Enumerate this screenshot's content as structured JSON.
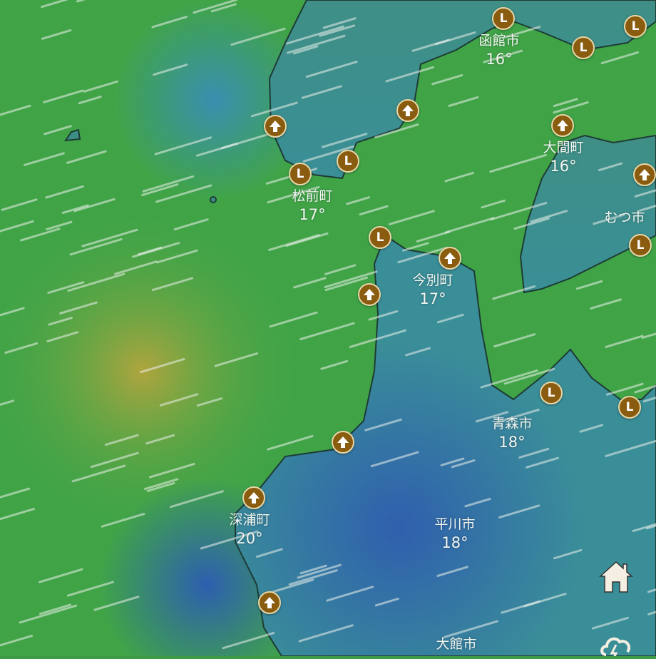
{
  "map": {
    "layer": "wind",
    "colors": {
      "sea_green": "#3fa648",
      "sea_yellow": "#a8a540",
      "land_teal": "#3b8f8c",
      "land_blue": "#2f63a8",
      "marker": "#8a5c10"
    }
  },
  "cities": [
    {
      "name": "函館市",
      "temp": "16°"
    },
    {
      "name": "大間町",
      "temp": "16°"
    },
    {
      "name": "むつ市",
      "temp": ""
    },
    {
      "name": "松前町",
      "temp": "17°"
    },
    {
      "name": "今別町",
      "temp": "17°"
    },
    {
      "name": "青森市",
      "temp": "18°"
    },
    {
      "name": "深浦町",
      "temp": "20°"
    },
    {
      "name": "平川市",
      "temp": "18°"
    },
    {
      "name": "大館市",
      "temp": ""
    }
  ],
  "markers": {
    "low_label": "L",
    "arrow_icon": "up-arrow-icon"
  },
  "controls": {
    "home_icon": "home-icon",
    "weather_icon": "storm-cloud-icon"
  }
}
